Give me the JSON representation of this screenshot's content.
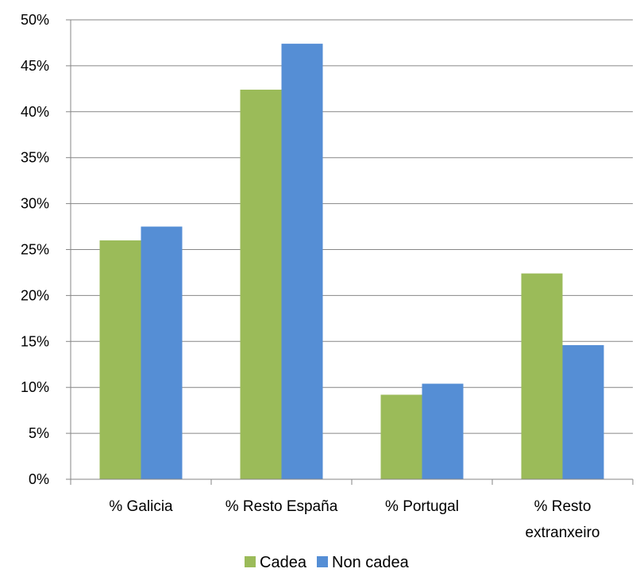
{
  "chart_data": {
    "type": "bar",
    "categories": [
      [
        "% Galicia"
      ],
      [
        "% Resto España"
      ],
      [
        "% Portugal"
      ],
      [
        "% Resto",
        "extranxeiro"
      ]
    ],
    "series": [
      {
        "name": "Cadea",
        "color": "#9BBB59",
        "values": [
          26.0,
          42.4,
          9.2,
          22.4
        ]
      },
      {
        "name": "Non cadea",
        "color": "#558ED5",
        "values": [
          27.5,
          47.4,
          10.4,
          14.6
        ]
      }
    ],
    "y_ticks": [
      "0%",
      "5%",
      "10%",
      "15%",
      "20%",
      "25%",
      "30%",
      "35%",
      "40%",
      "45%",
      "50%"
    ],
    "ylim": [
      0,
      50
    ],
    "grid": true,
    "legend_position": "bottom",
    "title": "",
    "xlabel": "",
    "ylabel": ""
  }
}
